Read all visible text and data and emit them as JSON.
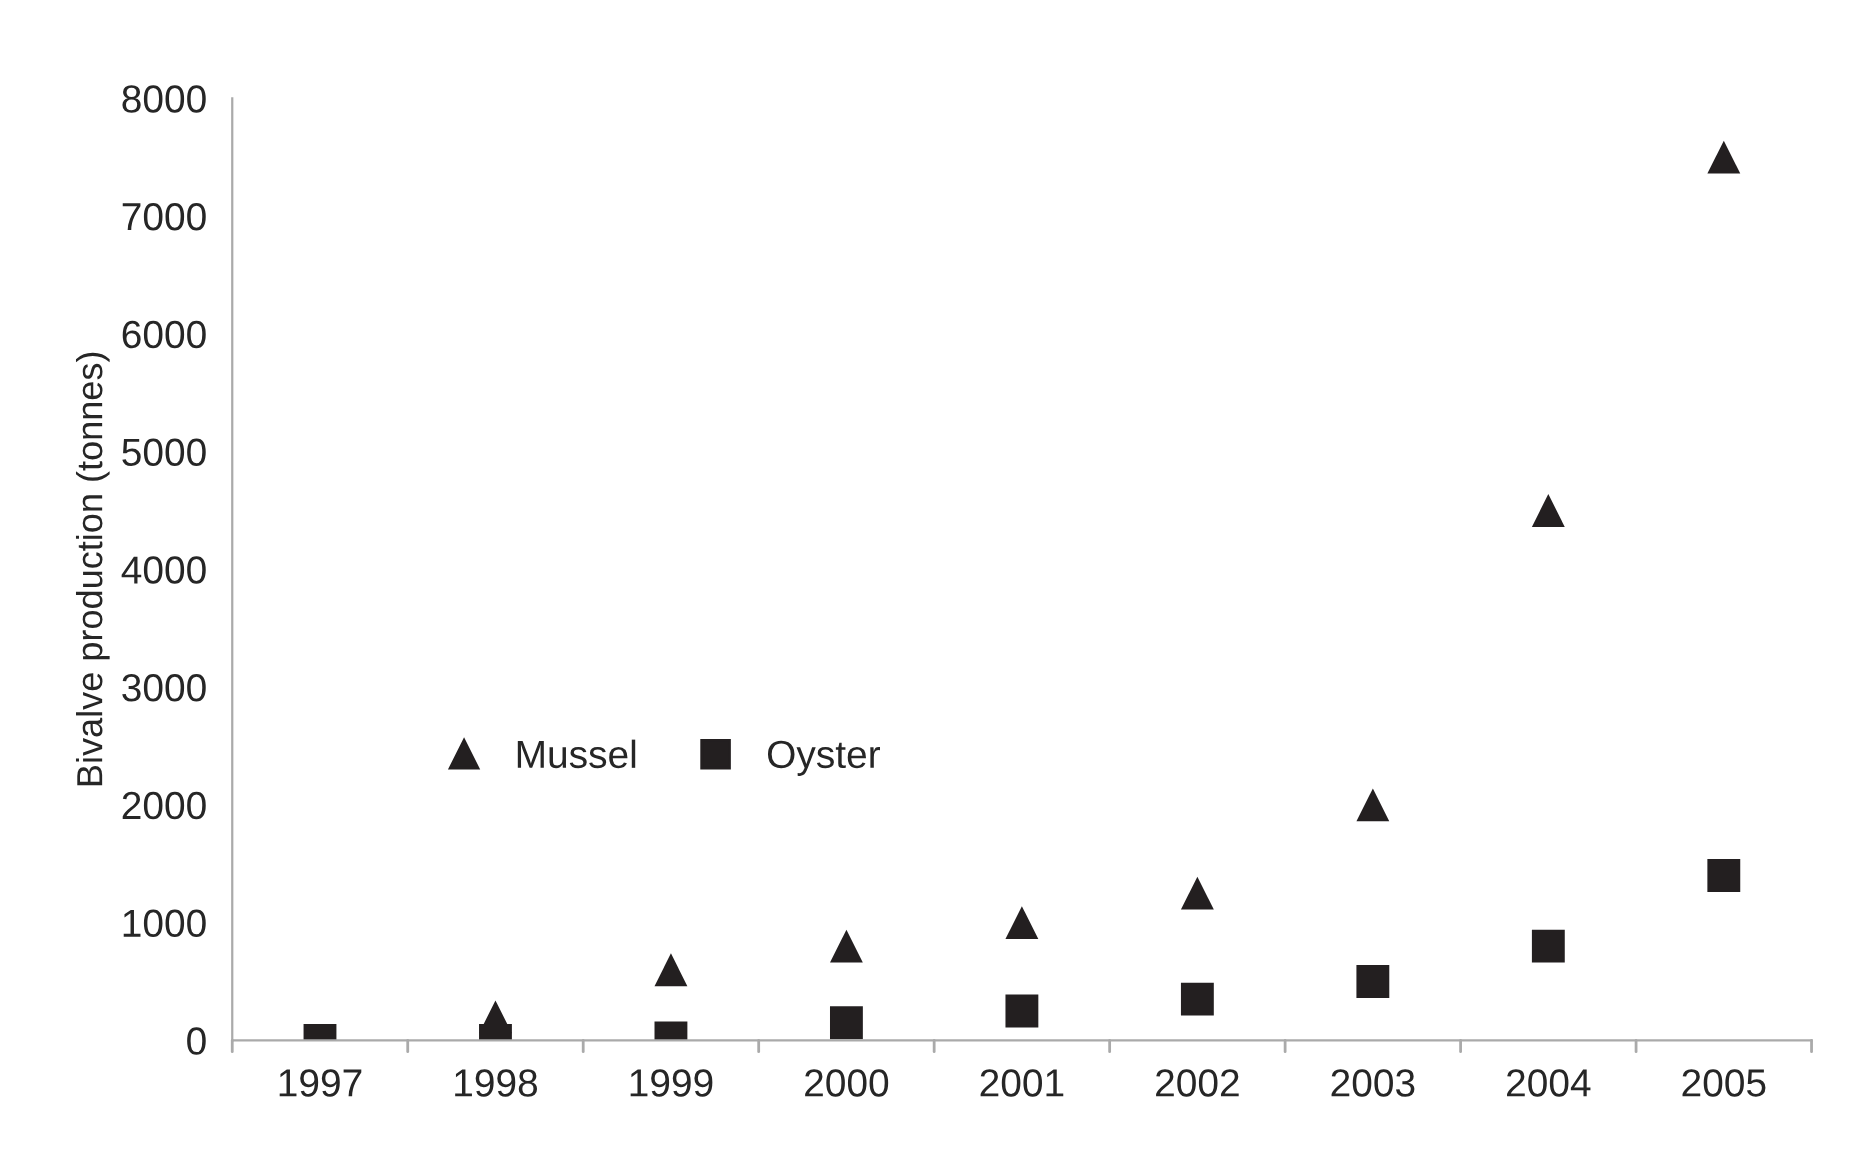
{
  "chart_data": {
    "type": "scatter",
    "ylabel": "Bivalve production (tonnes)",
    "categories": [
      "1997",
      "1998",
      "1999",
      "2000",
      "2001",
      "2002",
      "2003",
      "2004",
      "2005"
    ],
    "series": [
      {
        "name": "Mussel",
        "color": "#231f20",
        "marker": "triangle",
        "values": [
          null,
          200,
          600,
          800,
          1000,
          1250,
          2000,
          4500,
          7500
        ]
      },
      {
        "name": "Oyster",
        "color": "#231f20",
        "marker": "square",
        "values": [
          0,
          0,
          20,
          150,
          250,
          350,
          500,
          800,
          1400
        ]
      }
    ],
    "ylim": [
      0,
      8000
    ],
    "yticks": [
      0,
      1000,
      2000,
      3000,
      4000,
      5000,
      6000,
      7000,
      8000
    ],
    "grid": false,
    "legend": "left"
  }
}
